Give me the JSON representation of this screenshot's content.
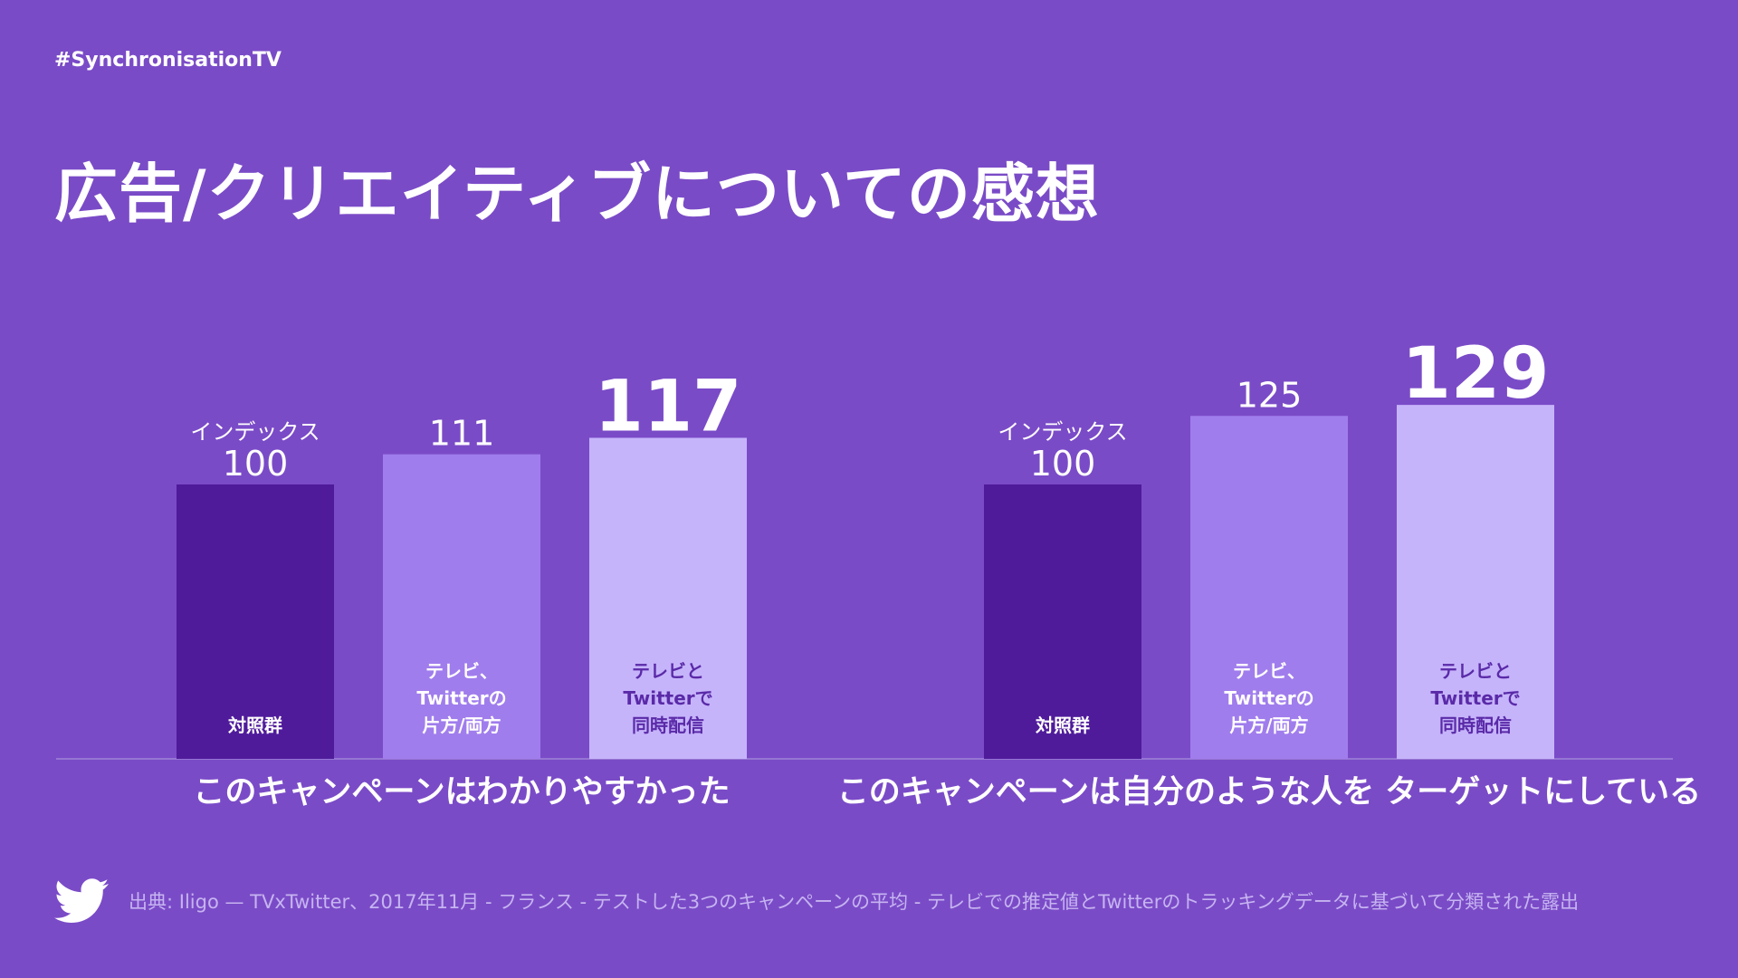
{
  "header": {
    "hashtag": "#SynchronisationTV",
    "title": "広告/クリエイティブについての感想"
  },
  "footer": {
    "source": "出典: Iligo — TVxTwitter、2017年11月 - フランス - テストした3つのキャンペーンの平均 - テレビでの推定値とTwitterのトラッキングデータに基づいて分類された露出",
    "icon": "twitter-bird-icon"
  },
  "colors": {
    "background": "#7a4bc7",
    "bar_control": "#4f1b9b",
    "bar_either": "#a07dec",
    "bar_both": "#c6b4fb"
  },
  "chart_data": [
    {
      "type": "bar",
      "xlabel": "このキャンペーンはわかりやすかった",
      "ylim": [
        0,
        129
      ],
      "categories": [
        [
          "対照群"
        ],
        [
          "テレビ、",
          "Twitterの",
          "片方/両方"
        ],
        [
          "テレビと",
          "Twitterで",
          "同時配信"
        ]
      ],
      "values": [
        100,
        111,
        117
      ],
      "value_labels": [
        "100",
        "111",
        "117"
      ],
      "index_label": "インデックス",
      "highlight": [
        false,
        false,
        true
      ]
    },
    {
      "type": "bar",
      "xlabel": "このキャンペーンは自分のような人を ターゲットにしている",
      "ylim": [
        0,
        129
      ],
      "categories": [
        [
          "対照群"
        ],
        [
          "テレビ、",
          "Twitterの",
          "片方/両方"
        ],
        [
          "テレビと",
          "Twitterで",
          "同時配信"
        ]
      ],
      "values": [
        100,
        125,
        129
      ],
      "value_labels": [
        "100",
        "125",
        "129"
      ],
      "index_label": "インデックス",
      "highlight": [
        false,
        false,
        true
      ]
    }
  ]
}
